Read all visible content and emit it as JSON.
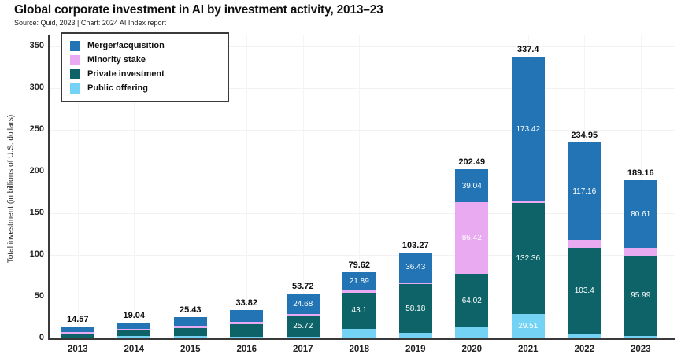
{
  "header": {
    "title": "Global corporate investment in AI by investment activity, 2013–23",
    "subtitle": "Source: Quid, 2023 | Chart: 2024 AI Index report"
  },
  "legend": {
    "position": "top-left",
    "items": [
      {
        "label": "Merger/acquisition",
        "color": "#2274b5"
      },
      {
        "label": "Minority stake",
        "color": "#e9aaf2"
      },
      {
        "label": "Private investment",
        "color": "#0d6367"
      },
      {
        "label": "Public offering",
        "color": "#74d3f5"
      }
    ]
  },
  "y_axis": {
    "title": "Total investment (in billions of U.S. dollars)",
    "ticks": [
      0,
      50,
      100,
      150,
      200,
      250,
      300,
      350
    ]
  },
  "chart_data": {
    "type": "bar",
    "stacked": true,
    "title": "Global corporate investment in AI by investment activity, 2013–23",
    "subtitle": "Source: Quid, 2023 | Chart: 2024 AI Index report",
    "xlabel": "",
    "ylabel": "Total investment (in billions of U.S. dollars)",
    "ylim": [
      0,
      365
    ],
    "grid": true,
    "legend_position": "top-left",
    "categories": [
      "2013",
      "2014",
      "2015",
      "2016",
      "2017",
      "2018",
      "2019",
      "2020",
      "2021",
      "2022",
      "2023"
    ],
    "series": [
      {
        "name": "Public offering",
        "color": "#74d3f5",
        "values": [
          1.37,
          2.8,
          2.43,
          1.92,
          1.72,
          11.63,
          6.66,
          13.01,
          29.51,
          5.44,
          3.26
        ],
        "labels": [
          null,
          null,
          null,
          null,
          null,
          null,
          null,
          null,
          "29.51",
          null,
          null
        ]
      },
      {
        "name": "Private investment",
        "color": "#0d6367",
        "values": [
          4.7,
          7.64,
          10.2,
          15.5,
          25.72,
          43.1,
          58.18,
          64.02,
          132.36,
          103.4,
          95.99
        ],
        "labels": [
          null,
          null,
          null,
          null,
          "25.72",
          "43.1",
          "58.18",
          "64.02",
          "132.36",
          "103.4",
          "95.99"
        ]
      },
      {
        "name": "Minority stake",
        "color": "#e9aaf2",
        "values": [
          1.9,
          1.0,
          2.4,
          2.4,
          1.6,
          3.0,
          2.0,
          86.42,
          2.11,
          8.95,
          9.3
        ],
        "labels": [
          null,
          null,
          null,
          null,
          null,
          null,
          null,
          "86.42",
          null,
          null,
          null
        ]
      },
      {
        "name": "Merger/acquisition",
        "color": "#2274b5",
        "values": [
          6.6,
          7.6,
          10.4,
          14.0,
          24.68,
          21.89,
          36.43,
          39.04,
          173.42,
          117.16,
          80.61
        ],
        "labels": [
          null,
          null,
          null,
          null,
          "24.68",
          "21.89",
          "36.43",
          "39.04",
          "173.42",
          "117.16",
          "80.61"
        ]
      }
    ],
    "totals": {
      "values": [
        14.57,
        19.04,
        25.43,
        33.82,
        53.72,
        79.62,
        103.27,
        202.49,
        337.4,
        234.95,
        189.16
      ],
      "labels": [
        "14.57",
        "19.04",
        "25.43",
        "33.82",
        "53.72",
        "79.62",
        "103.27",
        "202.49",
        "337.4",
        "234.95",
        "189.16"
      ]
    },
    "note": "Segment values without visible labels are estimated from bar pixel heights"
  },
  "colors": {
    "axis": "#3a3a3a",
    "background": "#ffffff",
    "gridline": "#f3f1f3",
    "title_text": "#111111",
    "segment_label_text": "#ffffff"
  }
}
